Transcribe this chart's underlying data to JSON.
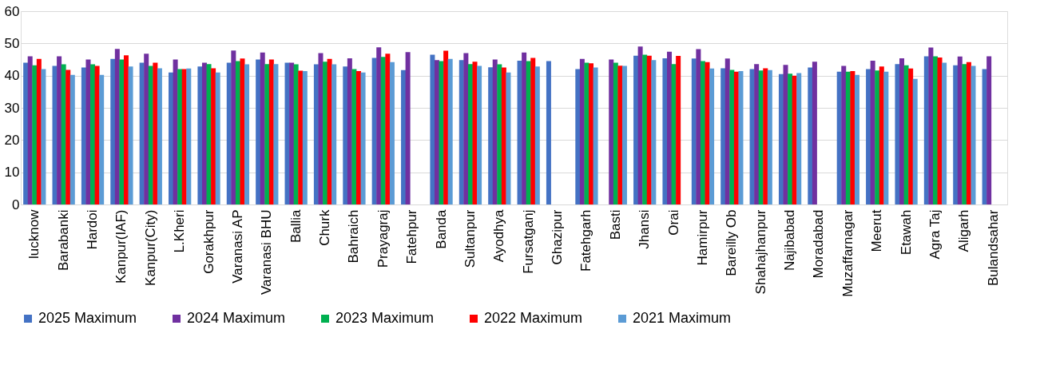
{
  "chart_data": {
    "type": "bar",
    "categories": [
      "lucknow",
      "Barabanki",
      "Hardoi",
      "Kanpur(IAF)",
      "Kanpur(City)",
      "L.Kheri",
      "Gorakhpur",
      "Varanasi AP",
      "Varanasi BHU",
      "Ballia",
      "Churk",
      "Bahraich",
      "Prayagraj",
      "Fatehpur",
      "Banda",
      "Sultanpur",
      "Ayodhya",
      "Fursatganj",
      "Ghazipur",
      "Fatehgarh",
      "Basti",
      "Jhansi",
      "Orai",
      "Hamirpur",
      "Bareilly Ob",
      "Shahajhanpur",
      "Najibabad",
      "Moradabad",
      "Muzaffarnagar",
      "Meerut",
      "Etawah",
      "Agra Taj",
      "Aligarh",
      "Bulandsahar"
    ],
    "series": [
      {
        "name": "2025 Maximum",
        "color": "#4472c4",
        "values": [
          44,
          43,
          42.5,
          45.2,
          44,
          41,
          42.8,
          44,
          45,
          44,
          43.5,
          42.8,
          45.5,
          41.7,
          46.5,
          44.8,
          42.6,
          44.6,
          44.5,
          42,
          null,
          46.2,
          45.4,
          45.3,
          42.3,
          42,
          40.5,
          42.5,
          41.2,
          42,
          43.6,
          46,
          43.2,
          42
        ]
      },
      {
        "name": "2024 Maximum",
        "color": "#7030a0",
        "values": [
          46,
          46,
          45,
          48.3,
          46.8,
          45,
          44,
          47.8,
          47.2,
          44,
          47,
          45.4,
          48.8,
          47.3,
          44.8,
          47,
          45,
          47.2,
          null,
          45.2,
          45,
          49,
          47.4,
          48.2,
          45.3,
          43.6,
          43.3,
          44.3,
          43,
          44.6,
          45.4,
          48.7,
          45.9,
          46
        ]
      },
      {
        "name": "2023 Maximum",
        "color": "#00b050",
        "values": [
          43.2,
          43.5,
          43.5,
          45,
          43,
          42,
          43.6,
          44.5,
          43.6,
          43.5,
          44.3,
          42,
          45.8,
          null,
          44.5,
          43.6,
          43.5,
          44.5,
          null,
          44,
          44,
          46.5,
          43.6,
          44.5,
          41.8,
          41.6,
          40.6,
          null,
          41.2,
          41.6,
          43.2,
          46,
          43.6,
          null
        ]
      },
      {
        "name": "2022 Maximum",
        "color": "#ff0000",
        "values": [
          45.2,
          41.8,
          43,
          46.3,
          44,
          42,
          42.3,
          45.3,
          45,
          41.5,
          45.2,
          41.4,
          46.8,
          null,
          47.7,
          44.3,
          42.5,
          45.5,
          null,
          43.8,
          43.1,
          46.2,
          46.1,
          44.2,
          41.2,
          42.3,
          40,
          null,
          41.4,
          42.8,
          42.2,
          45.6,
          44.2,
          null
        ]
      },
      {
        "name": "2021 Maximum",
        "color": "#5b9bd5",
        "values": [
          42,
          40.2,
          40.2,
          42.8,
          42.3,
          42.2,
          41,
          43.5,
          43.6,
          41.4,
          43.5,
          41,
          44.2,
          null,
          45.2,
          43,
          41,
          42.8,
          null,
          42.5,
          43,
          44.8,
          null,
          42.2,
          41.4,
          41.7,
          40.8,
          null,
          40.2,
          41.2,
          39,
          44,
          43,
          null
        ]
      }
    ],
    "ylim": [
      0,
      60
    ],
    "yticks": [
      0,
      10,
      20,
      30,
      40,
      50,
      60
    ],
    "grid": "y",
    "legend": "bottom"
  }
}
